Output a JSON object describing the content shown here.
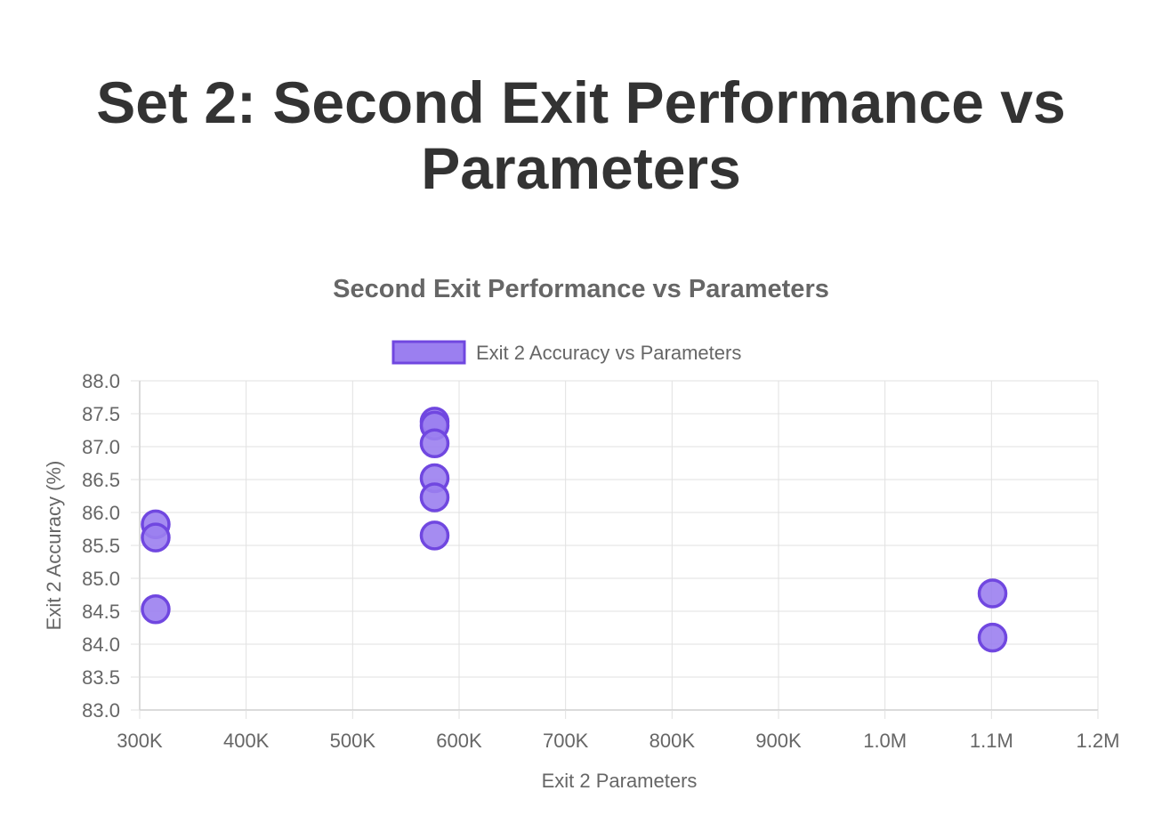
{
  "page": {
    "title": "Set 2: Second Exit Performance vs Parameters"
  },
  "chart_data": {
    "type": "scatter",
    "title": "Second Exit Performance vs Parameters",
    "xlabel": "Exit 2 Parameters",
    "ylabel": "Exit 2 Accuracy (%)",
    "xlim": [
      300000,
      1200000
    ],
    "ylim": [
      83.0,
      88.0
    ],
    "x_ticks": [
      "300K",
      "400K",
      "500K",
      "600K",
      "700K",
      "800K",
      "900K",
      "1.0M",
      "1.1M",
      "1.2M"
    ],
    "y_ticks": [
      "88.0",
      "87.5",
      "87.0",
      "86.5",
      "86.0",
      "85.5",
      "85.0",
      "84.5",
      "84.0",
      "83.5",
      "83.0"
    ],
    "grid": true,
    "legend_position": "top",
    "colors": {
      "fill": "#9b7ff0",
      "stroke": "#7047e0"
    },
    "series": [
      {
        "name": "Exit 2 Accuracy vs Parameters",
        "points": [
          {
            "x": 315000,
            "y": 85.82
          },
          {
            "x": 315000,
            "y": 85.62
          },
          {
            "x": 315000,
            "y": 84.53
          },
          {
            "x": 577000,
            "y": 87.38
          },
          {
            "x": 577000,
            "y": 87.32
          },
          {
            "x": 577000,
            "y": 87.05
          },
          {
            "x": 577000,
            "y": 86.52
          },
          {
            "x": 577000,
            "y": 86.23
          },
          {
            "x": 577000,
            "y": 85.65
          },
          {
            "x": 1101000,
            "y": 84.77
          },
          {
            "x": 1101000,
            "y": 84.1
          }
        ]
      }
    ]
  }
}
